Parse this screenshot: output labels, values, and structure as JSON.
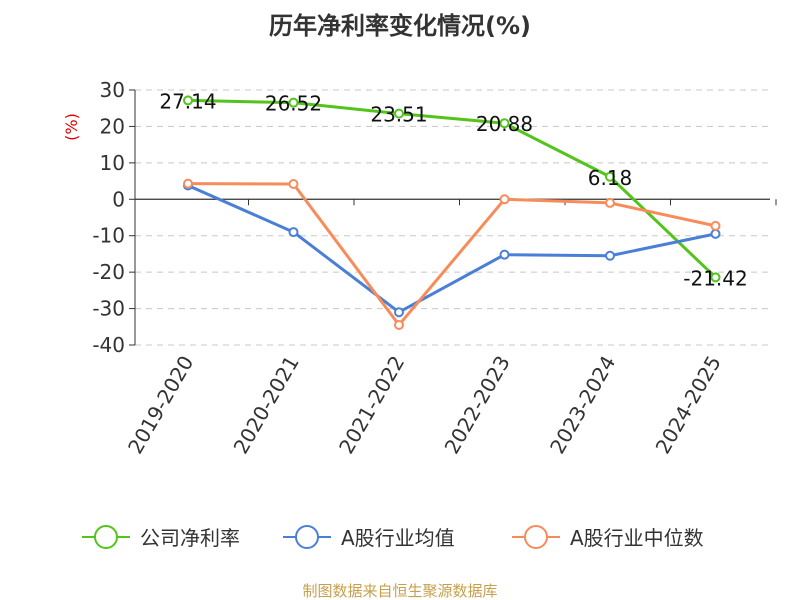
{
  "chart_data": {
    "type": "line",
    "title": "历年净利率变化情况(%)",
    "unit_label": "(%)",
    "categories": [
      "2019-2020",
      "2020-2021",
      "2021-2022",
      "2022-2023",
      "2023-2024",
      "2024-2025"
    ],
    "ylim": [
      -40,
      30
    ],
    "yticks": [
      30,
      20,
      10,
      0,
      -10,
      -20,
      -30,
      -40
    ],
    "grid": true,
    "legend_position": "bottom",
    "series": [
      {
        "name": "公司净利率",
        "color": "#52c41a",
        "values": [
          27.14,
          26.52,
          23.51,
          20.88,
          6.18,
          -21.42
        ],
        "labels": [
          "27.14",
          "26.52",
          "23.51",
          "20.88",
          "6.18",
          "-21.42"
        ]
      },
      {
        "name": "A股行业均值",
        "color": "#4a7fd8",
        "values": [
          3.8,
          -9.0,
          -31.0,
          -15.2,
          -15.5,
          -9.5
        ]
      },
      {
        "name": "A股行业中位数",
        "color": "#f78c5a",
        "values": [
          4.3,
          4.2,
          -34.5,
          0.0,
          -1.0,
          -7.3
        ]
      }
    ]
  },
  "source": "制图数据来自恒生聚源数据库"
}
